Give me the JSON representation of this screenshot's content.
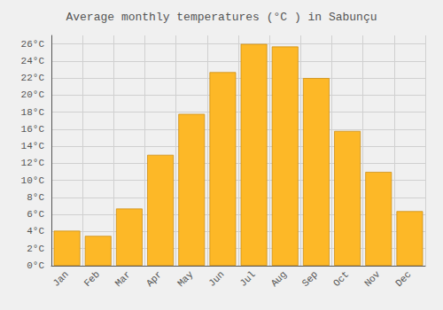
{
  "chart_data": {
    "type": "bar",
    "title": "Average monthly temperatures (°C ) in Sabunçu",
    "categories": [
      "Jan",
      "Feb",
      "Mar",
      "Apr",
      "May",
      "Jun",
      "Jul",
      "Aug",
      "Sep",
      "Oct",
      "Nov",
      "Dec"
    ],
    "values": [
      4.1,
      3.5,
      6.7,
      13.0,
      17.8,
      22.7,
      26.0,
      25.7,
      22.0,
      15.8,
      11.0,
      6.4
    ],
    "color": "#FDB827",
    "ylim": [
      0,
      27
    ],
    "yticks": [
      {
        "value": 0,
        "label": "0°C"
      },
      {
        "value": 2,
        "label": "2°C"
      },
      {
        "value": 4,
        "label": "4°C"
      },
      {
        "value": 6,
        "label": "6°C"
      },
      {
        "value": 8,
        "label": "8°C"
      },
      {
        "value": 10,
        "label": "10°C"
      },
      {
        "value": 12,
        "label": "12°C"
      },
      {
        "value": 14,
        "label": "14°C"
      },
      {
        "value": 16,
        "label": "16°C"
      },
      {
        "value": 18,
        "label": "18°C"
      },
      {
        "value": 20,
        "label": "20°C"
      },
      {
        "value": 22,
        "label": "22°C"
      },
      {
        "value": 24,
        "label": "24°C"
      },
      {
        "value": 26,
        "label": "26°C"
      }
    ],
    "grid": true
  }
}
